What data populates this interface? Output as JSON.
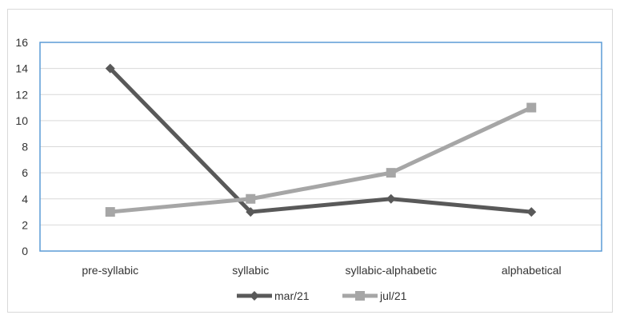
{
  "chart_data": {
    "type": "line",
    "categories": [
      "pre-syllabic",
      "syllabic",
      "syllabic-alphabetic",
      "alphabetical"
    ],
    "series": [
      {
        "name": "mar/21",
        "values": [
          14,
          3,
          4,
          3
        ],
        "color": "#595959",
        "marker": "diamond"
      },
      {
        "name": "jul/21",
        "values": [
          3,
          4,
          6,
          11
        ],
        "color": "#a6a6a6",
        "marker": "square"
      }
    ],
    "yticks": [
      "0",
      "2",
      "4",
      "6",
      "8",
      "10",
      "12",
      "14",
      "16"
    ],
    "ylim": [
      0,
      16
    ],
    "grid": true,
    "legend_position": "bottom",
    "plot_border_color": "#5b9bd5",
    "gridline_color": "#d9d9d9",
    "title": "",
    "xlabel": "",
    "ylabel": ""
  }
}
